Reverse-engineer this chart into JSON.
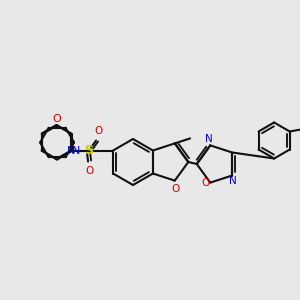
{
  "bg_color": "#e8e8e8",
  "line_color": "#111111",
  "bond_lw": 1.5,
  "fig_size": [
    3.0,
    3.0
  ],
  "dpi": 100,
  "colors": {
    "N": "#0000cc",
    "O": "#cc0000",
    "S": "#cccc00",
    "C": "#111111"
  }
}
